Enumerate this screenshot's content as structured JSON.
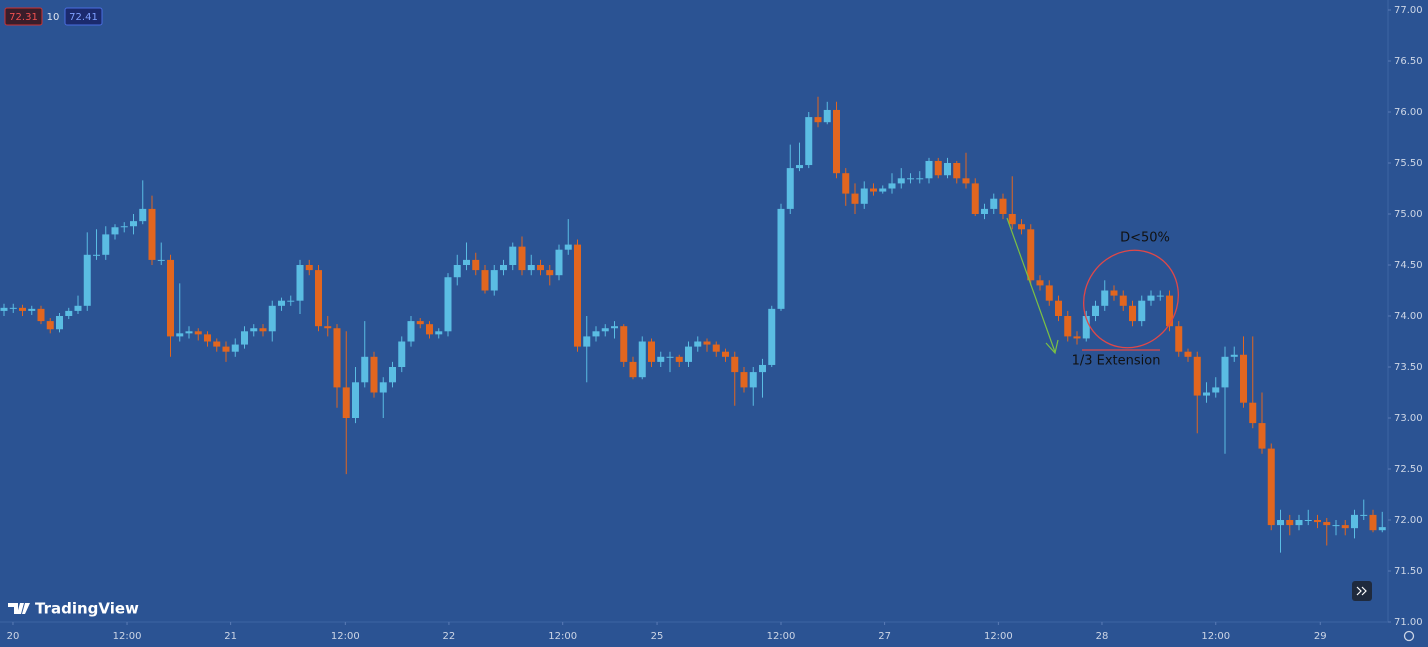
{
  "toolbar": {
    "bid": 72.31,
    "spread": 10,
    "ask": 72.41
  },
  "brand": "TradingView",
  "chart_data": {
    "type": "candlestick",
    "colors": {
      "up": "#5bbde3",
      "down": "#e2661f"
    },
    "annotations": [
      "D<50%",
      "1/3 Extension"
    ],
    "ylim": [
      71,
      77
    ],
    "yticks": [
      {
        "value": 77,
        "label": "77.00"
      },
      {
        "value": 76.5,
        "label": "76.50"
      },
      {
        "value": 76,
        "label": "76.00"
      },
      {
        "value": 75.5,
        "label": "75.50"
      },
      {
        "value": 75,
        "label": "75.00"
      },
      {
        "value": 74.5,
        "label": "74.50"
      },
      {
        "value": 74,
        "label": "74.00"
      },
      {
        "value": 73.5,
        "label": "73.50"
      },
      {
        "value": 73,
        "label": "73.00"
      },
      {
        "value": 72.5,
        "label": "72.50"
      },
      {
        "value": 72,
        "label": "72.00"
      },
      {
        "value": 71.5,
        "label": "71.50"
      },
      {
        "value": 71,
        "label": "71.00"
      }
    ],
    "xticks": [
      {
        "value": 0.97,
        "label": "20"
      },
      {
        "value": 13.3,
        "label": "12:00"
      },
      {
        "value": 24.5,
        "label": "21"
      },
      {
        "value": 36.9,
        "label": "12:00"
      },
      {
        "value": 48.1,
        "label": "22"
      },
      {
        "value": 60.4,
        "label": "12:00"
      },
      {
        "value": 70.6,
        "label": "25"
      },
      {
        "value": 84.0,
        "label": "12:00"
      },
      {
        "value": 95.2,
        "label": "27"
      },
      {
        "value": 107.5,
        "label": "12:00"
      },
      {
        "value": 118.7,
        "label": "28"
      },
      {
        "value": 131.0,
        "label": "12:00"
      },
      {
        "value": 142.3,
        "label": "29"
      }
    ],
    "candles": [
      [
        74.05,
        74.12,
        74.0,
        74.08
      ],
      [
        74.08,
        74.12,
        74.03,
        74.08
      ],
      [
        74.08,
        74.11,
        74.0,
        74.05
      ],
      [
        74.05,
        74.1,
        74.01,
        74.07
      ],
      [
        74.07,
        74.1,
        73.92,
        73.95
      ],
      [
        73.95,
        73.98,
        73.83,
        73.87
      ],
      [
        73.87,
        74.03,
        73.84,
        74.0
      ],
      [
        74.0,
        74.08,
        73.97,
        74.05
      ],
      [
        74.05,
        74.2,
        74.02,
        74.1
      ],
      [
        74.1,
        74.82,
        74.05,
        74.6
      ],
      [
        74.6,
        74.85,
        74.55,
        74.6
      ],
      [
        74.6,
        74.88,
        74.55,
        74.8
      ],
      [
        74.8,
        74.9,
        74.75,
        74.87
      ],
      [
        74.87,
        74.92,
        74.82,
        74.88
      ],
      [
        74.88,
        75.0,
        74.8,
        74.93
      ],
      [
        74.93,
        75.33,
        74.9,
        75.05
      ],
      [
        75.05,
        75.18,
        74.5,
        74.55
      ],
      [
        74.55,
        74.72,
        74.5,
        74.55
      ],
      [
        74.55,
        74.6,
        73.6,
        73.8
      ],
      [
        73.8,
        74.32,
        73.75,
        73.83
      ],
      [
        73.83,
        73.9,
        73.78,
        73.85
      ],
      [
        73.85,
        73.88,
        73.76,
        73.82
      ],
      [
        73.82,
        73.85,
        73.7,
        73.75
      ],
      [
        73.75,
        73.78,
        73.65,
        73.7
      ],
      [
        73.7,
        73.75,
        73.55,
        73.65
      ],
      [
        73.65,
        73.78,
        73.6,
        73.72
      ],
      [
        73.72,
        73.9,
        73.68,
        73.85
      ],
      [
        73.85,
        73.92,
        73.8,
        73.88
      ],
      [
        73.88,
        73.92,
        73.8,
        73.85
      ],
      [
        73.85,
        74.15,
        73.75,
        74.1
      ],
      [
        74.1,
        74.18,
        74.05,
        74.15
      ],
      [
        74.15,
        74.2,
        74.1,
        74.15
      ],
      [
        74.15,
        74.55,
        74.02,
        74.5
      ],
      [
        74.5,
        74.55,
        74.4,
        74.45
      ],
      [
        74.45,
        74.5,
        73.85,
        73.9
      ],
      [
        73.9,
        74.0,
        73.8,
        73.88
      ],
      [
        73.88,
        73.92,
        73.1,
        73.3
      ],
      [
        73.3,
        73.85,
        72.45,
        73.0
      ],
      [
        73.0,
        73.5,
        72.95,
        73.35
      ],
      [
        73.35,
        73.95,
        73.3,
        73.6
      ],
      [
        73.6,
        73.65,
        73.2,
        73.25
      ],
      [
        73.25,
        73.4,
        73.0,
        73.35
      ],
      [
        73.35,
        73.55,
        73.3,
        73.5
      ],
      [
        73.5,
        73.8,
        73.45,
        73.75
      ],
      [
        73.75,
        74.0,
        73.7,
        73.95
      ],
      [
        73.95,
        73.98,
        73.88,
        73.92
      ],
      [
        73.92,
        73.95,
        73.78,
        73.82
      ],
      [
        73.82,
        73.88,
        73.78,
        73.85
      ],
      [
        73.85,
        74.42,
        73.8,
        74.38
      ],
      [
        74.38,
        74.6,
        74.3,
        74.5
      ],
      [
        74.5,
        74.72,
        74.45,
        74.55
      ],
      [
        74.55,
        74.62,
        74.4,
        74.45
      ],
      [
        74.45,
        74.5,
        74.22,
        74.25
      ],
      [
        74.25,
        74.5,
        74.2,
        74.45
      ],
      [
        74.45,
        74.55,
        74.4,
        74.5
      ],
      [
        74.5,
        74.72,
        74.45,
        74.68
      ],
      [
        74.68,
        74.78,
        74.4,
        74.45
      ],
      [
        74.45,
        74.6,
        74.4,
        74.5
      ],
      [
        74.5,
        74.55,
        74.4,
        74.45
      ],
      [
        74.45,
        74.5,
        74.3,
        74.4
      ],
      [
        74.4,
        74.7,
        74.35,
        74.65
      ],
      [
        74.65,
        74.95,
        74.6,
        74.7
      ],
      [
        74.7,
        74.75,
        73.65,
        73.7
      ],
      [
        73.7,
        74.0,
        73.35,
        73.8
      ],
      [
        73.8,
        73.9,
        73.75,
        73.85
      ],
      [
        73.85,
        73.92,
        73.8,
        73.88
      ],
      [
        73.88,
        73.95,
        73.78,
        73.9
      ],
      [
        73.9,
        73.92,
        73.5,
        73.55
      ],
      [
        73.55,
        73.6,
        73.38,
        73.4
      ],
      [
        73.4,
        73.8,
        73.38,
        73.75
      ],
      [
        73.75,
        73.78,
        73.5,
        73.55
      ],
      [
        73.55,
        73.65,
        73.5,
        73.6
      ],
      [
        73.6,
        73.65,
        73.45,
        73.6
      ],
      [
        73.6,
        73.62,
        73.5,
        73.55
      ],
      [
        73.55,
        73.75,
        73.5,
        73.7
      ],
      [
        73.7,
        73.8,
        73.65,
        73.75
      ],
      [
        73.75,
        73.78,
        73.65,
        73.72
      ],
      [
        73.72,
        73.75,
        73.6,
        73.65
      ],
      [
        73.65,
        73.68,
        73.55,
        73.6
      ],
      [
        73.6,
        73.65,
        73.12,
        73.45
      ],
      [
        73.45,
        73.5,
        73.25,
        73.3
      ],
      [
        73.3,
        73.5,
        73.12,
        73.45
      ],
      [
        73.45,
        73.58,
        73.2,
        73.52
      ],
      [
        73.52,
        74.1,
        73.5,
        74.07
      ],
      [
        74.07,
        75.1,
        74.05,
        75.05
      ],
      [
        75.05,
        75.68,
        75.0,
        75.45
      ],
      [
        75.45,
        75.7,
        75.42,
        75.48
      ],
      [
        75.48,
        76.0,
        75.45,
        75.95
      ],
      [
        75.95,
        76.15,
        75.85,
        75.9
      ],
      [
        75.9,
        76.1,
        75.88,
        76.02
      ],
      [
        76.02,
        76.1,
        75.35,
        75.4
      ],
      [
        75.4,
        75.45,
        75.08,
        75.2
      ],
      [
        75.2,
        75.3,
        75.0,
        75.1
      ],
      [
        75.1,
        75.32,
        75.05,
        75.25
      ],
      [
        75.25,
        75.3,
        75.18,
        75.22
      ],
      [
        75.22,
        75.28,
        75.2,
        75.25
      ],
      [
        75.25,
        75.4,
        75.2,
        75.3
      ],
      [
        75.3,
        75.45,
        75.25,
        75.35
      ],
      [
        75.35,
        75.4,
        75.3,
        75.35
      ],
      [
        75.35,
        75.42,
        75.3,
        75.35
      ],
      [
        75.35,
        75.55,
        75.3,
        75.52
      ],
      [
        75.52,
        75.55,
        75.35,
        75.38
      ],
      [
        75.38,
        75.55,
        75.35,
        75.5
      ],
      [
        75.5,
        75.52,
        75.3,
        75.35
      ],
      [
        75.35,
        75.6,
        75.25,
        75.3
      ],
      [
        75.3,
        75.35,
        74.98,
        75.0
      ],
      [
        75.0,
        75.1,
        74.95,
        75.05
      ],
      [
        75.05,
        75.2,
        75.0,
        75.15
      ],
      [
        75.15,
        75.2,
        74.95,
        75.0
      ],
      [
        75.0,
        75.37,
        74.85,
        74.9
      ],
      [
        74.9,
        74.95,
        74.8,
        74.85
      ],
      [
        74.85,
        74.9,
        74.3,
        74.35
      ],
      [
        74.35,
        74.4,
        74.25,
        74.3
      ],
      [
        74.3,
        74.35,
        74.1,
        74.15
      ],
      [
        74.15,
        74.2,
        73.95,
        74.0
      ],
      [
        74.0,
        74.05,
        73.75,
        73.8
      ],
      [
        73.8,
        73.85,
        73.72,
        73.78
      ],
      [
        73.78,
        74.05,
        73.75,
        74.0
      ],
      [
        74.0,
        74.15,
        73.95,
        74.1
      ],
      [
        74.1,
        74.35,
        74.05,
        74.25
      ],
      [
        74.25,
        74.3,
        74.15,
        74.2
      ],
      [
        74.2,
        74.25,
        74.05,
        74.1
      ],
      [
        74.1,
        74.15,
        73.9,
        73.95
      ],
      [
        73.95,
        74.2,
        73.9,
        74.15
      ],
      [
        74.15,
        74.25,
        74.1,
        74.2
      ],
      [
        74.2,
        74.25,
        74.15,
        74.2
      ],
      [
        74.2,
        74.25,
        73.85,
        73.9
      ],
      [
        73.9,
        73.95,
        73.6,
        73.65
      ],
      [
        73.65,
        73.68,
        73.55,
        73.6
      ],
      [
        73.6,
        73.65,
        72.85,
        73.22
      ],
      [
        73.22,
        73.35,
        73.15,
        73.25
      ],
      [
        73.25,
        73.4,
        73.2,
        73.3
      ],
      [
        73.3,
        73.7,
        72.65,
        73.6
      ],
      [
        73.6,
        73.7,
        73.55,
        73.62
      ],
      [
        73.62,
        73.8,
        73.1,
        73.15
      ],
      [
        73.15,
        73.8,
        72.9,
        72.95
      ],
      [
        72.95,
        73.25,
        72.65,
        72.7
      ],
      [
        72.7,
        72.75,
        71.9,
        71.95
      ],
      [
        71.95,
        72.1,
        71.68,
        72.0
      ],
      [
        72.0,
        72.05,
        71.85,
        71.95
      ],
      [
        71.95,
        72.05,
        71.9,
        72.0
      ],
      [
        72.0,
        72.1,
        71.95,
        72.0
      ],
      [
        72.0,
        72.05,
        71.92,
        71.98
      ],
      [
        71.98,
        72.02,
        71.75,
        71.95
      ],
      [
        71.95,
        72.0,
        71.85,
        71.95
      ],
      [
        71.95,
        72.0,
        71.85,
        71.92
      ],
      [
        71.92,
        72.1,
        71.82,
        72.05
      ],
      [
        72.05,
        72.2,
        72.0,
        72.05
      ],
      [
        72.05,
        72.1,
        71.88,
        71.9
      ],
      [
        71.9,
        72.08,
        71.88,
        71.93
      ]
    ]
  }
}
